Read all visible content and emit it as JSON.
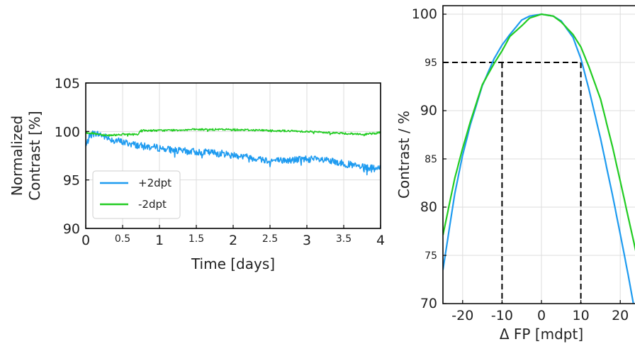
{
  "chart_data": [
    {
      "type": "line",
      "title": "",
      "xlabel": "Time [days]",
      "ylabel": [
        "Normalized",
        "Contrast [%]"
      ],
      "xlim": [
        0,
        4
      ],
      "ylim": [
        90,
        105
      ],
      "grid": true,
      "x_ticks": [
        {
          "value": 0,
          "label": "0",
          "major": true
        },
        {
          "value": 0.5,
          "label": "0.5",
          "major": false
        },
        {
          "value": 1,
          "label": "1",
          "major": true
        },
        {
          "value": 1.5,
          "label": "1.5",
          "major": false
        },
        {
          "value": 2,
          "label": "2",
          "major": true
        },
        {
          "value": 2.5,
          "label": "2.5",
          "major": false
        },
        {
          "value": 3,
          "label": "3",
          "major": true
        },
        {
          "value": 3.5,
          "label": "3.5",
          "major": false
        },
        {
          "value": 4,
          "label": "4",
          "major": true
        }
      ],
      "y_ticks": [
        {
          "value": 90,
          "label": "90"
        },
        {
          "value": 95,
          "label": "95"
        },
        {
          "value": 100,
          "label": "100"
        },
        {
          "value": 105,
          "label": "105"
        }
      ],
      "legend": {
        "placement": "lower-left"
      },
      "series": [
        {
          "name": "+2dpt",
          "color": "#1e9bf0",
          "x": [
            0,
            0.05,
            0.1,
            0.2,
            0.3,
            0.5,
            0.75,
            1.0,
            1.25,
            1.5,
            1.75,
            2.0,
            2.25,
            2.5,
            2.75,
            3.0,
            3.25,
            3.5,
            3.75,
            3.9,
            4.0
          ],
          "y": [
            98.4,
            99.5,
            99.8,
            99.7,
            99.3,
            98.9,
            98.5,
            98.3,
            98.0,
            97.9,
            97.8,
            97.6,
            97.3,
            97.0,
            97.0,
            97.2,
            97.0,
            96.7,
            96.3,
            96.2,
            96.1
          ],
          "noise": 0.45
        },
        {
          "name": "-2dpt",
          "color": "#22cc22",
          "x": [
            0,
            0.1,
            0.3,
            0.5,
            0.7,
            0.75,
            1.0,
            1.5,
            2.0,
            2.5,
            3.0,
            3.5,
            3.8,
            4.0
          ],
          "y": [
            99.9,
            99.8,
            99.6,
            99.7,
            99.7,
            100.1,
            100.1,
            100.2,
            100.2,
            100.1,
            100.0,
            99.8,
            99.7,
            99.9
          ],
          "noise": 0.12
        }
      ]
    },
    {
      "type": "line",
      "title": "",
      "xlabel": "Δ FP [mdpt]",
      "ylabel": "Contrast / %",
      "xlim": [
        -25,
        25
      ],
      "ylim": [
        70,
        100
      ],
      "grid": true,
      "x_ticks": [
        {
          "value": -20,
          "label": "-20"
        },
        {
          "value": -10,
          "label": "-10"
        },
        {
          "value": 0,
          "label": "0"
        },
        {
          "value": 10,
          "label": "10"
        },
        {
          "value": 20,
          "label": "20"
        }
      ],
      "y_ticks": [
        {
          "value": 70,
          "label": "70",
          "major": true
        },
        {
          "value": 75,
          "label": "75",
          "major": false
        },
        {
          "value": 80,
          "label": "80",
          "major": true
        },
        {
          "value": 85,
          "label": "85",
          "major": false
        },
        {
          "value": 90,
          "label": "90",
          "major": true
        },
        {
          "value": 95,
          "label": "95",
          "major": false
        },
        {
          "value": 100,
          "label": "100",
          "major": true
        }
      ],
      "series": [
        {
          "color": "#1e9bf0",
          "x": [
            -25,
            -22,
            -20,
            -18,
            -15,
            -12,
            -10,
            -8,
            -5,
            -3,
            0,
            3,
            5,
            8,
            10,
            12,
            15,
            18,
            20,
            22,
            25
          ],
          "y": [
            73.5,
            81.4,
            85.4,
            88.6,
            92.6,
            95.4,
            96.8,
            97.9,
            99.4,
            99.8,
            100.0,
            99.8,
            99.3,
            97.6,
            95.4,
            92.3,
            87.1,
            81.3,
            77.2,
            73.0,
            66.2
          ]
        },
        {
          "color": "#22cc22",
          "x": [
            -25,
            -22,
            -20,
            -18,
            -15,
            -12,
            -10,
            -8,
            -5,
            -3,
            0,
            3,
            5,
            8,
            10,
            12,
            15,
            18,
            20,
            22,
            25
          ],
          "y": [
            77.1,
            83.0,
            86.1,
            88.9,
            92.7,
            94.9,
            96.2,
            97.7,
            98.8,
            99.6,
            100.0,
            99.8,
            99.2,
            97.9,
            96.6,
            94.6,
            91.2,
            86.3,
            82.7,
            79.0,
            73.5
          ]
        }
      ],
      "reference_lines": {
        "y": 95,
        "x": [
          -10,
          10
        ],
        "style": "dashed"
      }
    }
  ]
}
